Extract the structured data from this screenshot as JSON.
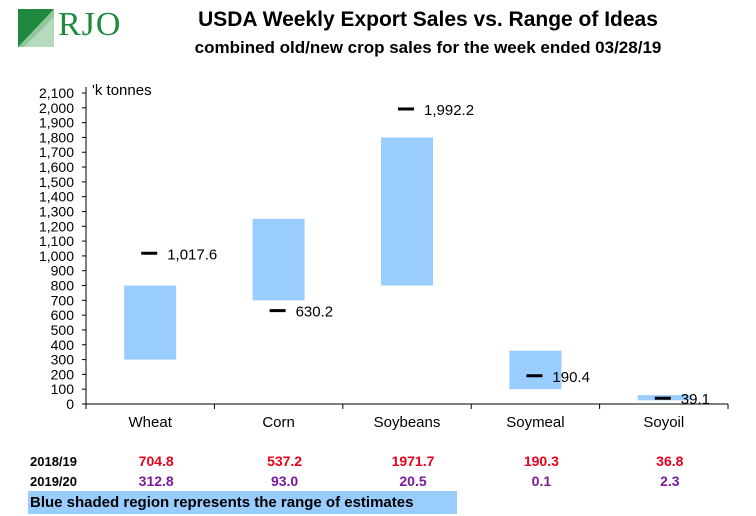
{
  "header": {
    "logo_text": "RJO",
    "title": "USDA Weekly Export Sales vs. Range of Ideas",
    "subtitle": "combined old/new crop sales for the week ended 03/28/19"
  },
  "chart_data": {
    "type": "floating-bar",
    "unit_label": "'k tonnes",
    "categories": [
      "Wheat",
      "Corn",
      "Soybeans",
      "Soymeal",
      "Soyoil"
    ],
    "range_low": [
      300,
      700,
      800,
      100,
      25
    ],
    "range_high": [
      800,
      1250,
      1800,
      360,
      60
    ],
    "actual": [
      1017.6,
      630.2,
      1992.2,
      190.4,
      39.1
    ],
    "actual_labels": [
      "1,017.6",
      "630.2",
      "1,992.2",
      "190.4",
      "39.1"
    ],
    "ylim": [
      0,
      2100
    ],
    "ytick_step": 100,
    "colors": {
      "range": "#99ccff",
      "marker": "#000000"
    }
  },
  "table": {
    "rows": [
      {
        "label": "2018/19",
        "color": "red",
        "values": [
          "704.8",
          "537.2",
          "1971.7",
          "190.3",
          "36.8"
        ]
      },
      {
        "label": "2019/20",
        "color": "purple",
        "values": [
          "312.8",
          "93.0",
          "20.5",
          "0.1",
          "2.3"
        ]
      }
    ]
  },
  "footer": {
    "note": "Blue shaded region represents the range of estimates"
  }
}
